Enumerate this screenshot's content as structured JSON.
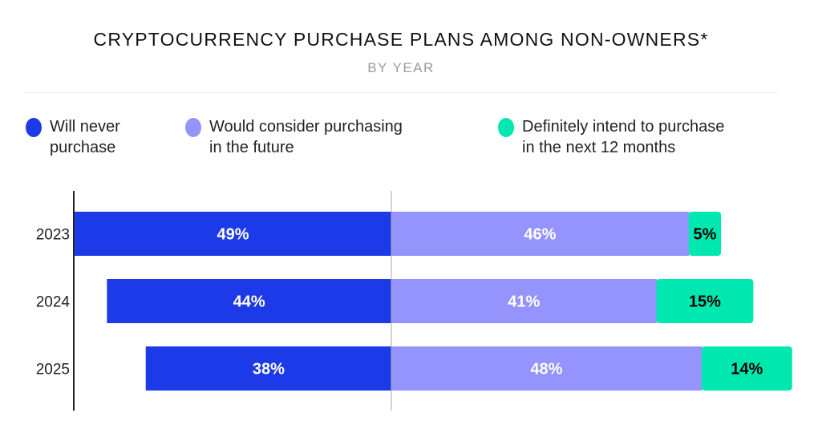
{
  "title": "CRYPTOCURRENCY PURCHASE PLANS AMONG NON-OWNERS*",
  "subtitle": "BY YEAR",
  "colors": {
    "never": "#1d3ae8",
    "consider": "#9494fc",
    "definitely": "#00e8b0"
  },
  "legend": [
    {
      "line1": "Will never",
      "line2": "purchase"
    },
    {
      "line1": "Would consider purchasing",
      "line2": "in the future"
    },
    {
      "line1": "Definitely intend to purchase",
      "line2": "in the next 12 months"
    }
  ],
  "chart_data": {
    "type": "bar",
    "orientation": "horizontal",
    "stacked": "diverging",
    "categories": [
      "2023",
      "2024",
      "2025"
    ],
    "series": [
      {
        "name": "Will never purchase",
        "values": [
          49,
          44,
          38
        ],
        "labels": [
          "49%",
          "44%",
          "38%"
        ]
      },
      {
        "name": "Would consider purchasing in the future",
        "values": [
          46,
          41,
          48
        ],
        "labels": [
          "46%",
          "41%",
          "48%"
        ]
      },
      {
        "name": "Definitely intend to purchase in the next 12 months",
        "values": [
          5,
          15,
          14
        ],
        "labels": [
          "5%",
          "15%",
          "14%"
        ]
      }
    ],
    "unit": "%",
    "legend_position": "top",
    "grid": false
  }
}
